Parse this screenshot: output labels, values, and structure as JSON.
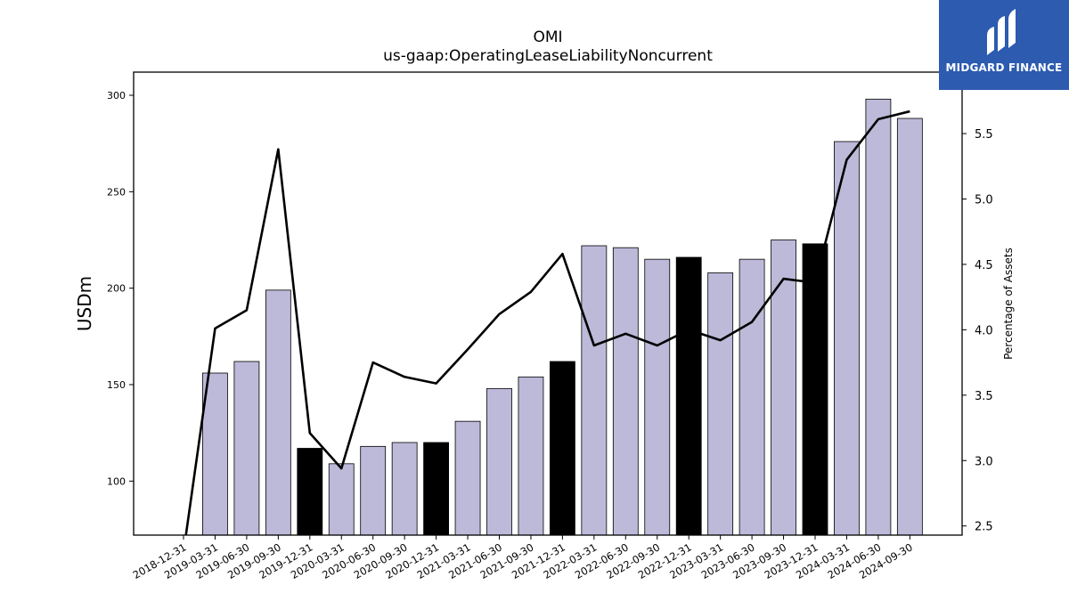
{
  "logo": {
    "text": "MIDGARD FINANCE",
    "background": "#2c5bb0"
  },
  "chart_data": {
    "type": "bar",
    "title": "OMI",
    "subtitle": "us-gaap:OperatingLeaseLiabilityNoncurrent",
    "ylabel": "USDm",
    "y2label": "Percentage of Assets",
    "ylim": [
      72,
      312
    ],
    "y2lim": [
      2.43,
      5.97
    ],
    "yticks": [
      100,
      150,
      200,
      250,
      300
    ],
    "y2ticks": [
      "2.5",
      "3.0",
      "3.5",
      "4.0",
      "4.5",
      "5.0",
      "5.5"
    ],
    "categories": [
      "2018-12-31",
      "2019-03-31",
      "2019-06-30",
      "2019-09-30",
      "2019-12-31",
      "2020-03-31",
      "2020-06-30",
      "2020-09-30",
      "2020-12-31",
      "2021-03-31",
      "2021-06-30",
      "2021-09-30",
      "2021-12-31",
      "2022-03-31",
      "2022-06-30",
      "2022-09-30",
      "2022-12-31",
      "2023-03-31",
      "2023-06-30",
      "2023-09-30",
      "2023-12-31",
      "2024-03-31",
      "2024-06-30",
      "2024-09-30"
    ],
    "series": [
      {
        "type": "bar",
        "values": [
          null,
          156,
          162,
          199,
          117,
          109,
          118,
          120,
          120,
          131,
          148,
          154,
          162,
          222,
          221,
          215,
          216,
          208,
          215,
          225,
          223,
          276,
          298,
          288
        ],
        "highlight": [
          false,
          false,
          false,
          false,
          true,
          false,
          false,
          false,
          true,
          false,
          false,
          false,
          true,
          false,
          false,
          false,
          true,
          false,
          false,
          false,
          true,
          false,
          false,
          false
        ],
        "color": "#bcb9d9",
        "highlight_color": "#000000"
      },
      {
        "type": "line",
        "axis": "right",
        "values": [
          2.3,
          4.01,
          4.15,
          5.38,
          3.21,
          2.94,
          3.75,
          3.64,
          3.59,
          3.85,
          4.12,
          4.29,
          4.58,
          3.88,
          3.97,
          3.88,
          4.0,
          3.92,
          4.06,
          4.39,
          4.36,
          5.3,
          5.61,
          5.67
        ],
        "color": "#000000"
      }
    ],
    "grid": false,
    "legend": "none"
  }
}
